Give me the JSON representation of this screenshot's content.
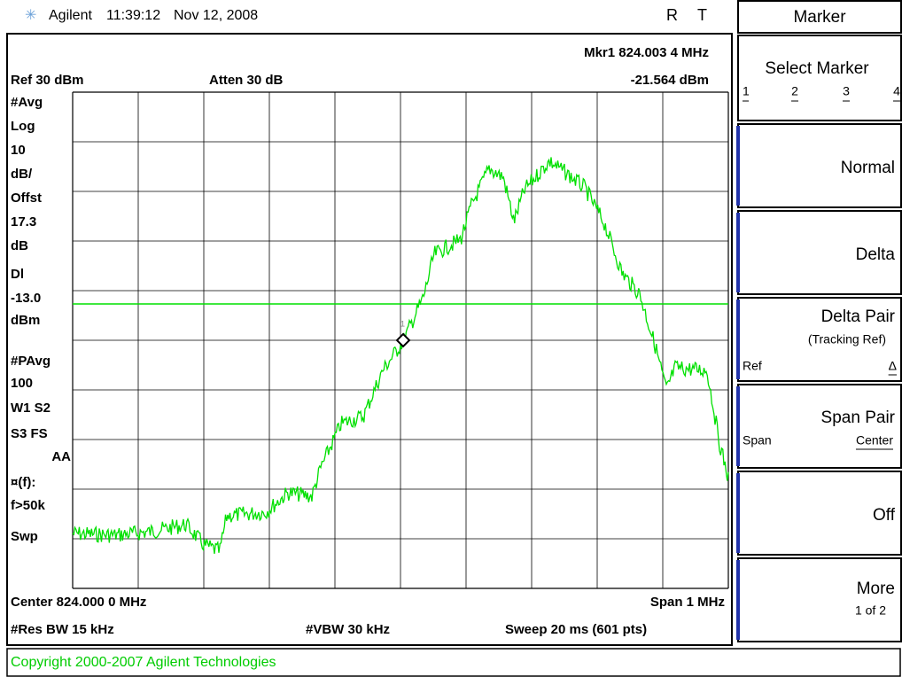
{
  "header": {
    "brand": "Agilent",
    "time": "11:39:12",
    "date": "Nov 12, 2008",
    "r": "R",
    "t": "T"
  },
  "screen": {
    "marker": "Mkr1  824.003 4 MHz",
    "marker_level": "-21.564 dBm",
    "ref": "Ref 30 dBm",
    "atten": "Atten 30 dB",
    "left_labels": [
      "#Avg",
      "Log",
      "10",
      "dB/",
      "Offst",
      "17.3",
      "dB",
      "Dl",
      "-13.0",
      "dBm",
      "#PAvg",
      "100",
      "W1  S2",
      "S3  FS",
      "AA",
      "¤(f):",
      "f>50k",
      "Swp"
    ],
    "marker_number": "1",
    "center": "Center 824.000 0 MHz",
    "span": "Span 1 MHz",
    "rbw": "#Res BW 15 kHz",
    "vbw": "#VBW 30 kHz",
    "sweep": "Sweep 20 ms (601 pts)"
  },
  "status": "Copyright 2000-2007 Agilent Technologies",
  "menu": {
    "title": "Marker",
    "select": "Select Marker",
    "select_options": [
      "1",
      "2",
      "3",
      "4"
    ],
    "normal": "Normal",
    "delta": "Delta",
    "delta_pair": "Delta Pair",
    "delta_pair_sub": "(Tracking Ref)",
    "delta_pair_left": "Ref",
    "delta_pair_right": "Δ",
    "span_pair": "Span Pair",
    "span_pair_left": "Span",
    "span_pair_right": "Center",
    "off": "Off",
    "more": "More",
    "more_sub": "1 of 2"
  }
}
